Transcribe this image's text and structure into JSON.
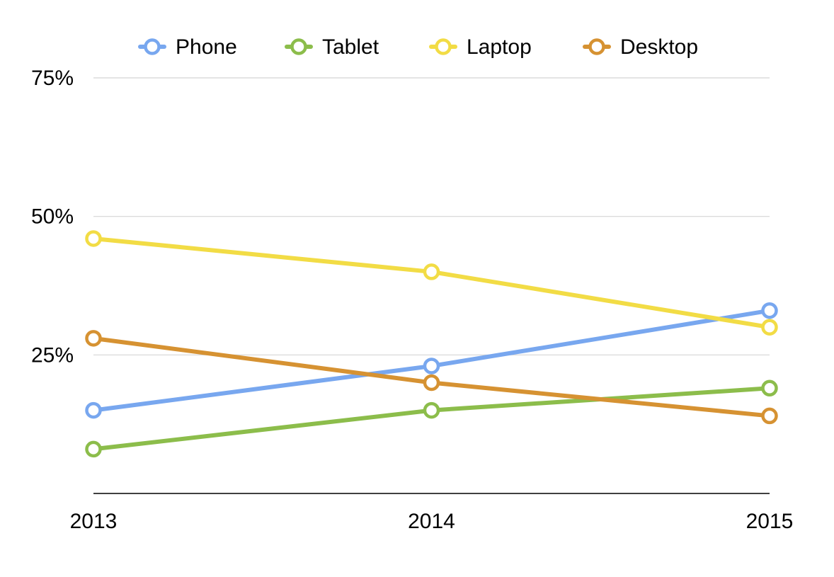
{
  "chart_data": {
    "type": "line",
    "categories": [
      "2013",
      "2014",
      "2015"
    ],
    "yticks": [
      "25%",
      "50%",
      "75%"
    ],
    "ylim": [
      0,
      75
    ],
    "grid": true,
    "legend_position": "top",
    "series": [
      {
        "name": "Phone",
        "color": "#78a7ef",
        "values": [
          15,
          23,
          33
        ]
      },
      {
        "name": "Tablet",
        "color": "#8cbd4b",
        "values": [
          8,
          15,
          19
        ]
      },
      {
        "name": "Laptop",
        "color": "#f2dc45",
        "values": [
          46,
          40,
          30
        ]
      },
      {
        "name": "Desktop",
        "color": "#d69232",
        "values": [
          28,
          20,
          14
        ]
      }
    ]
  }
}
